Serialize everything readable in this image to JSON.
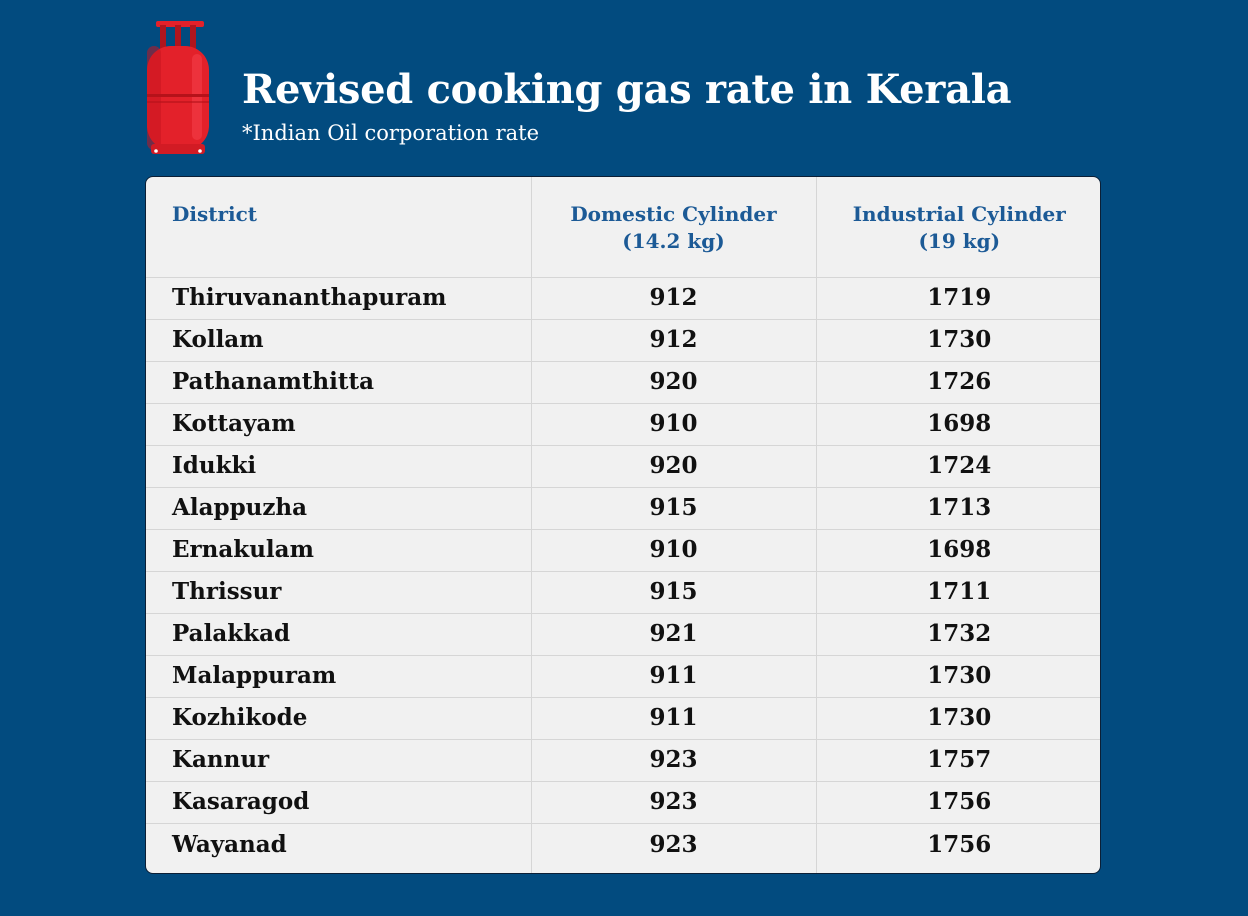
{
  "header": {
    "title": "Revised cooking gas rate in Kerala",
    "subtitle": "*Indian Oil corporation rate",
    "icon": "gas-cylinder-icon"
  },
  "colors": {
    "background": "#024b7f",
    "header_text": "#1c5a96",
    "cylinder": "#e3212a"
  },
  "chart_data": {
    "type": "table",
    "title": "Revised cooking gas rate in Kerala",
    "subtitle": "*Indian Oil corporation rate",
    "columns": [
      {
        "line1": "District",
        "line2": ""
      },
      {
        "line1": "Domestic Cylinder",
        "line2": "(14.2 kg)"
      },
      {
        "line1": "Industrial Cylinder",
        "line2": "(19 kg)"
      }
    ],
    "rows": [
      [
        "Thiruvananthapuram",
        "912",
        "1719"
      ],
      [
        "Kollam",
        "912",
        "1730"
      ],
      [
        "Pathanamthitta",
        "920",
        "1726"
      ],
      [
        "Kottayam",
        "910",
        "1698"
      ],
      [
        "Idukki",
        "920",
        "1724"
      ],
      [
        "Alappuzha",
        "915",
        "1713"
      ],
      [
        "Ernakulam",
        "910",
        "1698"
      ],
      [
        "Thrissur",
        "915",
        "1711"
      ],
      [
        "Palakkad",
        "921",
        "1732"
      ],
      [
        "Malappuram",
        "911",
        "1730"
      ],
      [
        "Kozhikode",
        "911",
        "1730"
      ],
      [
        "Kannur",
        "923",
        "1757"
      ],
      [
        "Kasaragod",
        "923",
        "1756"
      ],
      [
        "Wayanad",
        "923",
        "1756"
      ]
    ]
  }
}
